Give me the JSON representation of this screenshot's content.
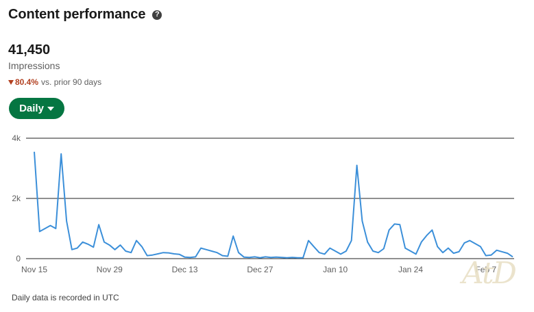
{
  "header": {
    "title": "Content performance",
    "help_icon": "question-circle-icon"
  },
  "metric": {
    "value": "41,450",
    "label": "Impressions",
    "change": "80.4%",
    "change_suffix": "vs. prior 90 days",
    "change_direction": "down"
  },
  "controls": {
    "interval_label": "Daily"
  },
  "footer": {
    "note": "Daily data is recorded in UTC"
  },
  "watermark": {
    "text": "AtD"
  },
  "colors": {
    "accent": "#057642",
    "line": "#3b8fd9",
    "negative": "#b24020",
    "axis": "#191919"
  },
  "chart_data": {
    "type": "line",
    "title": "",
    "xlabel": "",
    "ylabel": "",
    "ylim": [
      0,
      4000
    ],
    "yticks": [
      0,
      2000,
      4000
    ],
    "ytick_labels": [
      "0",
      "2k",
      "4k"
    ],
    "x_start": "Nov 15",
    "xtick_labels": [
      "Nov 15",
      "Nov 29",
      "Dec 13",
      "Dec 27",
      "Jan 10",
      "Jan 24",
      "Feb 7"
    ],
    "xtick_index": [
      0,
      14,
      28,
      42,
      56,
      70,
      84
    ],
    "grid": "horizontal",
    "series": [
      {
        "values": [
          3550,
          900,
          1000,
          1100,
          1000,
          3480,
          1250,
          300,
          350,
          550,
          480,
          380,
          1130,
          550,
          450,
          300,
          450,
          250,
          200,
          600,
          400,
          100,
          120,
          160,
          200,
          190,
          160,
          140,
          50,
          40,
          60,
          350,
          300,
          250,
          200,
          100,
          80,
          750,
          200,
          50,
          40,
          60,
          30,
          60,
          40,
          50,
          40,
          30,
          40,
          30,
          30,
          600,
          400,
          200,
          150,
          350,
          250,
          150,
          250,
          600,
          3100,
          1250,
          550,
          250,
          200,
          330,
          950,
          1150,
          1130,
          350,
          250,
          150,
          550,
          770,
          950,
          400,
          200,
          350,
          180,
          230,
          520,
          600,
          500,
          400,
          100,
          120,
          280,
          230,
          180,
          60
        ]
      }
    ]
  }
}
